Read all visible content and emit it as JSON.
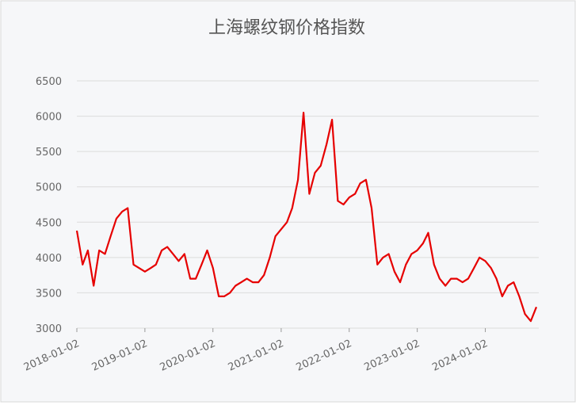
{
  "chart_data": {
    "type": "line",
    "title": "上海螺纹钢价格指数",
    "x": [
      "2018-01-02",
      "2018-02-02",
      "2018-03-02",
      "2018-04-02",
      "2018-05-02",
      "2018-06-02",
      "2018-07-02",
      "2018-08-02",
      "2018-09-02",
      "2018-10-02",
      "2018-11-02",
      "2018-12-02",
      "2019-01-02",
      "2019-02-02",
      "2019-03-02",
      "2019-04-02",
      "2019-05-02",
      "2019-06-02",
      "2019-07-02",
      "2019-08-02",
      "2019-09-02",
      "2019-10-02",
      "2019-11-02",
      "2019-12-02",
      "2020-01-02",
      "2020-02-02",
      "2020-03-02",
      "2020-04-02",
      "2020-05-02",
      "2020-06-02",
      "2020-07-02",
      "2020-08-02",
      "2020-09-02",
      "2020-10-02",
      "2020-11-02",
      "2020-12-02",
      "2021-01-02",
      "2021-02-02",
      "2021-03-02",
      "2021-04-02",
      "2021-05-02",
      "2021-06-02",
      "2021-07-02",
      "2021-08-02",
      "2021-09-02",
      "2021-10-02",
      "2021-11-02",
      "2021-12-02",
      "2022-01-02",
      "2022-02-02",
      "2022-03-02",
      "2022-04-02",
      "2022-05-02",
      "2022-06-02",
      "2022-07-02",
      "2022-08-02",
      "2022-09-02",
      "2022-10-02",
      "2022-11-02",
      "2022-12-02",
      "2023-01-02",
      "2023-02-02",
      "2023-03-02",
      "2023-04-02",
      "2023-05-02",
      "2023-06-02",
      "2023-07-02",
      "2023-08-02",
      "2023-09-02",
      "2023-10-02",
      "2023-11-02",
      "2023-12-02",
      "2024-01-02",
      "2024-02-02",
      "2024-03-02",
      "2024-04-02",
      "2024-05-02",
      "2024-06-02",
      "2024-07-02",
      "2024-08-02",
      "2024-09-02",
      "2024-10-02"
    ],
    "series": [
      {
        "color": "#e60000",
        "values": [
          4380,
          3900,
          4100,
          3600,
          4100,
          4050,
          4300,
          4550,
          4650,
          4700,
          3900,
          3850,
          3800,
          3850,
          3900,
          4100,
          4150,
          4050,
          3950,
          4050,
          3700,
          3700,
          3900,
          4100,
          3850,
          3450,
          3450,
          3500,
          3600,
          3650,
          3700,
          3650,
          3650,
          3750,
          4000,
          4300,
          4400,
          4500,
          4700,
          5100,
          6050,
          4900,
          5200,
          5300,
          5600,
          5950,
          4800,
          4750,
          4850,
          4900,
          5050,
          5100,
          4700,
          3900,
          4000,
          4050,
          3800,
          3650,
          3900,
          4050,
          4100,
          4200,
          4350,
          3900,
          3700,
          3600,
          3700,
          3700,
          3650,
          3700,
          3850,
          4000,
          3950,
          3850,
          3700,
          3450,
          3600,
          3650,
          3450,
          3200,
          3100,
          3300
        ]
      }
    ],
    "xlim": [
      "2018-01-02",
      "2024-10-02"
    ],
    "xticks": [
      "2018-01-02",
      "2019-01-02",
      "2020-01-02",
      "2021-01-02",
      "2022-01-02",
      "2023-01-02",
      "2024-01-02"
    ],
    "ylim": [
      3000,
      6500
    ],
    "yticks": [
      3000,
      3500,
      4000,
      4500,
      5000,
      5500,
      6000,
      6500
    ],
    "grid": true
  }
}
